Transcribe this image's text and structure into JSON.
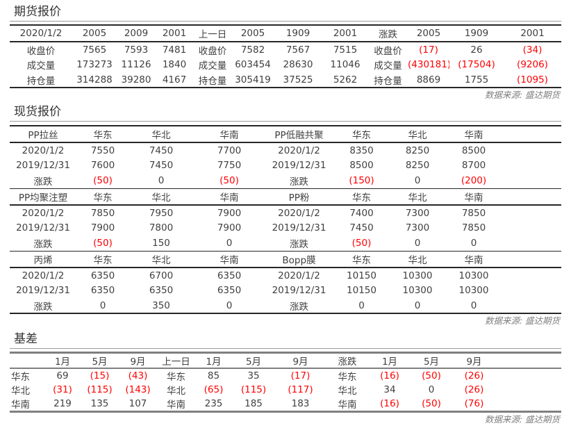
{
  "colors": {
    "negative": "#ff0000",
    "text": "#3f3f3f",
    "muted": "#7f7f7f"
  },
  "futures": {
    "title": "期货报价",
    "source": "数据来源: 盛达期货",
    "blocks": [
      {
        "header": [
          "2020/1/2",
          "2005",
          "2009",
          "2001",
          "上一日",
          "2005",
          "1909",
          "2001",
          "涨跌",
          "2005",
          "1909",
          "2001"
        ],
        "rows": [
          [
            "收盘价",
            "7565",
            "7593",
            "7481",
            "收盘价",
            "7582",
            "7567",
            "7515",
            "收盘价",
            "(17)",
            "26",
            "(34)"
          ],
          [
            "成交量",
            "173273",
            "11126",
            "1840",
            "成交量",
            "603454",
            "28630",
            "11046",
            "成交量",
            "(430181)",
            "(17504)",
            "(9206)"
          ],
          [
            "持仓量",
            "314288",
            "39280",
            "4167",
            "持仓量",
            "305419",
            "37525",
            "5262",
            "持仓量",
            "8869",
            "1755",
            "(1095)"
          ]
        ]
      }
    ]
  },
  "spot": {
    "title": "现货报价",
    "source": "数据来源: 盛达期货",
    "blocks": [
      {
        "header": [
          "PP拉丝",
          "华东",
          "华北",
          "华南",
          "PP低融共聚",
          "华东",
          "华北",
          "华南"
        ],
        "rows": [
          [
            "2020/1/2",
            "7550",
            "7450",
            "7700",
            "2020/1/2",
            "8350",
            "8250",
            "8500"
          ],
          [
            "2019/12/31",
            "7600",
            "7450",
            "7750",
            "2019/12/31",
            "8500",
            "8250",
            "8700"
          ],
          [
            "涨跌",
            "(50)",
            "0",
            "(50)",
            "涨跌",
            "(150)",
            "0",
            "(200)"
          ]
        ]
      },
      {
        "header": [
          "PP均聚注塑",
          "华东",
          "华北",
          "华南",
          "PP粉",
          "华东",
          "华北",
          "华南"
        ],
        "rows": [
          [
            "2020/1/2",
            "7850",
            "7950",
            "7900",
            "2020/1/2",
            "7400",
            "7300",
            "7850"
          ],
          [
            "2019/12/31",
            "7900",
            "7800",
            "7900",
            "2019/12/31",
            "7450",
            "7300",
            "7850"
          ],
          [
            "涨跌",
            "(50)",
            "150",
            "0",
            "涨跌",
            "(50)",
            "0",
            "0"
          ]
        ]
      },
      {
        "header": [
          "丙烯",
          "华东",
          "华北",
          "华南",
          "Bopp膜",
          "华东",
          "华北",
          "华南"
        ],
        "rows": [
          [
            "2020/1/2",
            "6350",
            "6700",
            "6350",
            "2020/1/2",
            "10150",
            "10300",
            "10300"
          ],
          [
            "2019/12/31",
            "6350",
            "6350",
            "6350",
            "2019/12/31",
            "10150",
            "10300",
            "10300"
          ],
          [
            "涨跌",
            "0",
            "350",
            "0",
            "涨跌",
            "0",
            "0",
            "0"
          ]
        ]
      }
    ]
  },
  "basis": {
    "title": "基差",
    "source": "数据来源: 盛达期货",
    "blocks": [
      {
        "header": [
          "",
          "1月",
          "5月",
          "9月",
          "上一日",
          "1月",
          "5月",
          "9月",
          "涨跌",
          "1月",
          "5月",
          "9月"
        ],
        "rows": [
          [
            "华东",
            "69",
            "(15)",
            "(43)",
            "华东",
            "85",
            "35",
            "(17)",
            "华东",
            "(16)",
            "(50)",
            "(26)"
          ],
          [
            "华北",
            "(31)",
            "(115)",
            "(143)",
            "华北",
            "(65)",
            "(115)",
            "(117)",
            "华北",
            "34",
            "0",
            "(26)"
          ],
          [
            "华南",
            "219",
            "135",
            "107",
            "华南",
            "235",
            "185",
            "183",
            "华南",
            "(16)",
            "(50)",
            "(76)"
          ]
        ]
      }
    ]
  }
}
